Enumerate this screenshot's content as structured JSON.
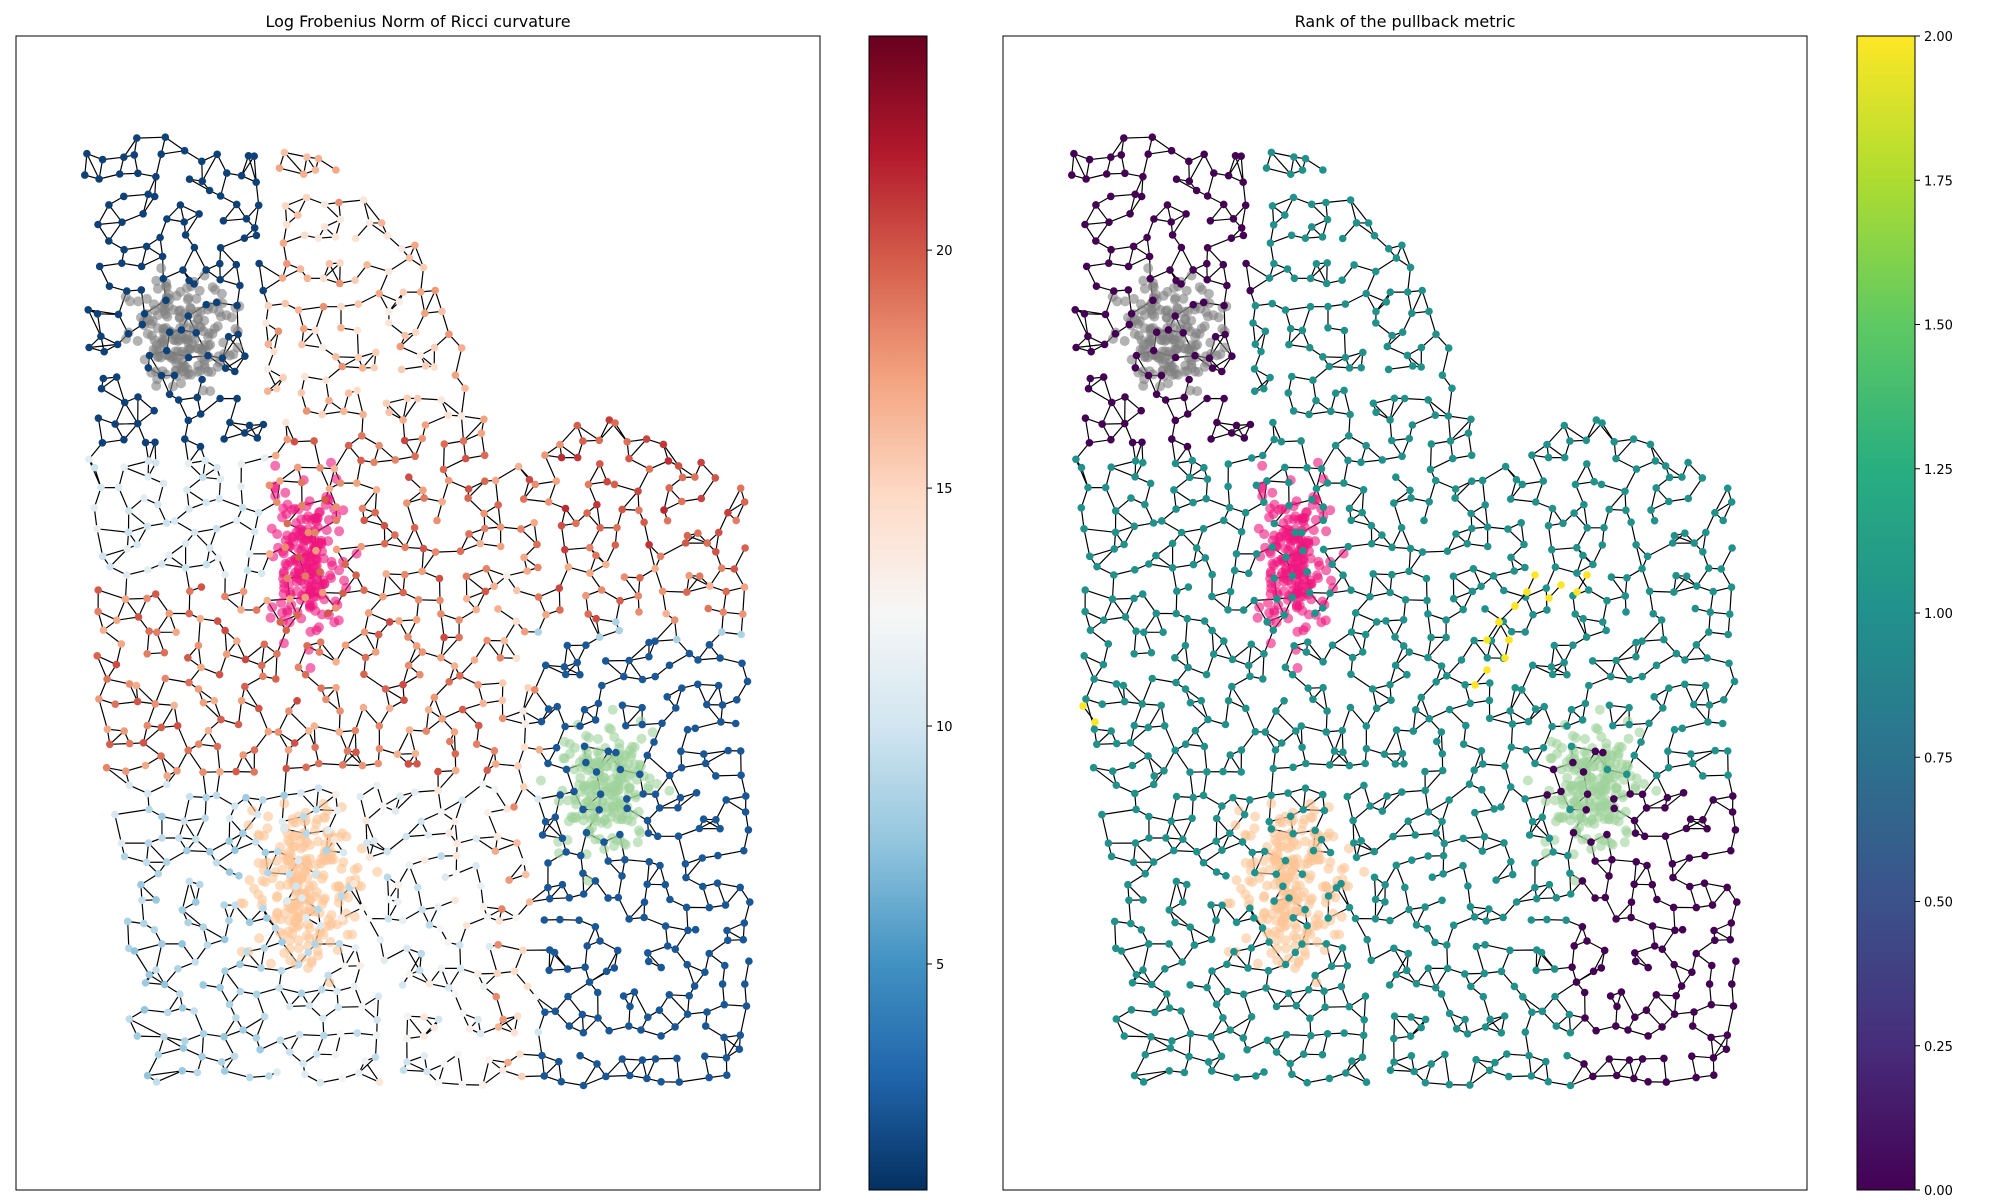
{
  "chart_data": [
    {
      "type": "scatter",
      "title": "Log Frobenius Norm of Ricci curvature",
      "xlabel": "",
      "ylabel": "",
      "grid": false,
      "colorbar": {
        "colormap": "RdBu_r",
        "range": [
          0.25,
          24.5
        ],
        "ticks": [
          5,
          10,
          15,
          20
        ],
        "tick_labels": [
          "5",
          "10",
          "15",
          "20"
        ]
      },
      "regions": [
        {
          "name": "upper-left",
          "value": 1.0
        },
        {
          "name": "left-middle",
          "value": 10.5
        },
        {
          "name": "center",
          "value": 18.5
        },
        {
          "name": "top-center",
          "value": 15.5
        },
        {
          "name": "right-center",
          "value": 20.0
        },
        {
          "name": "lower-left",
          "value": 8.5
        },
        {
          "name": "right-bottom",
          "value": 2.0
        },
        {
          "name": "right-strip",
          "value": 12.5
        }
      ],
      "overlay_clusters": [
        {
          "color": "#808080"
        },
        {
          "color": "#f0157f"
        },
        {
          "color": "#fdc596"
        },
        {
          "color": "#9ed29b"
        }
      ]
    },
    {
      "type": "scatter",
      "title": "Rank of the pullback metric",
      "xlabel": "",
      "ylabel": "",
      "grid": false,
      "colorbar": {
        "colormap": "viridis",
        "range": [
          0.0,
          2.0
        ],
        "ticks": [
          0.0,
          0.25,
          0.5,
          0.75,
          1.0,
          1.25,
          1.5,
          1.75,
          2.0
        ],
        "tick_labels": [
          "0.00",
          "0.25",
          "0.50",
          "0.75",
          "1.00",
          "1.25",
          "1.50",
          "1.75",
          "2.00"
        ]
      },
      "rank_values": {
        "default": 1,
        "upper-left": 0,
        "lower-right": 0,
        "small-segments": 2
      },
      "overlay_clusters": [
        {
          "color": "#808080"
        },
        {
          "color": "#f0157f"
        },
        {
          "color": "#fdc596"
        },
        {
          "color": "#9ed29b"
        }
      ]
    }
  ]
}
